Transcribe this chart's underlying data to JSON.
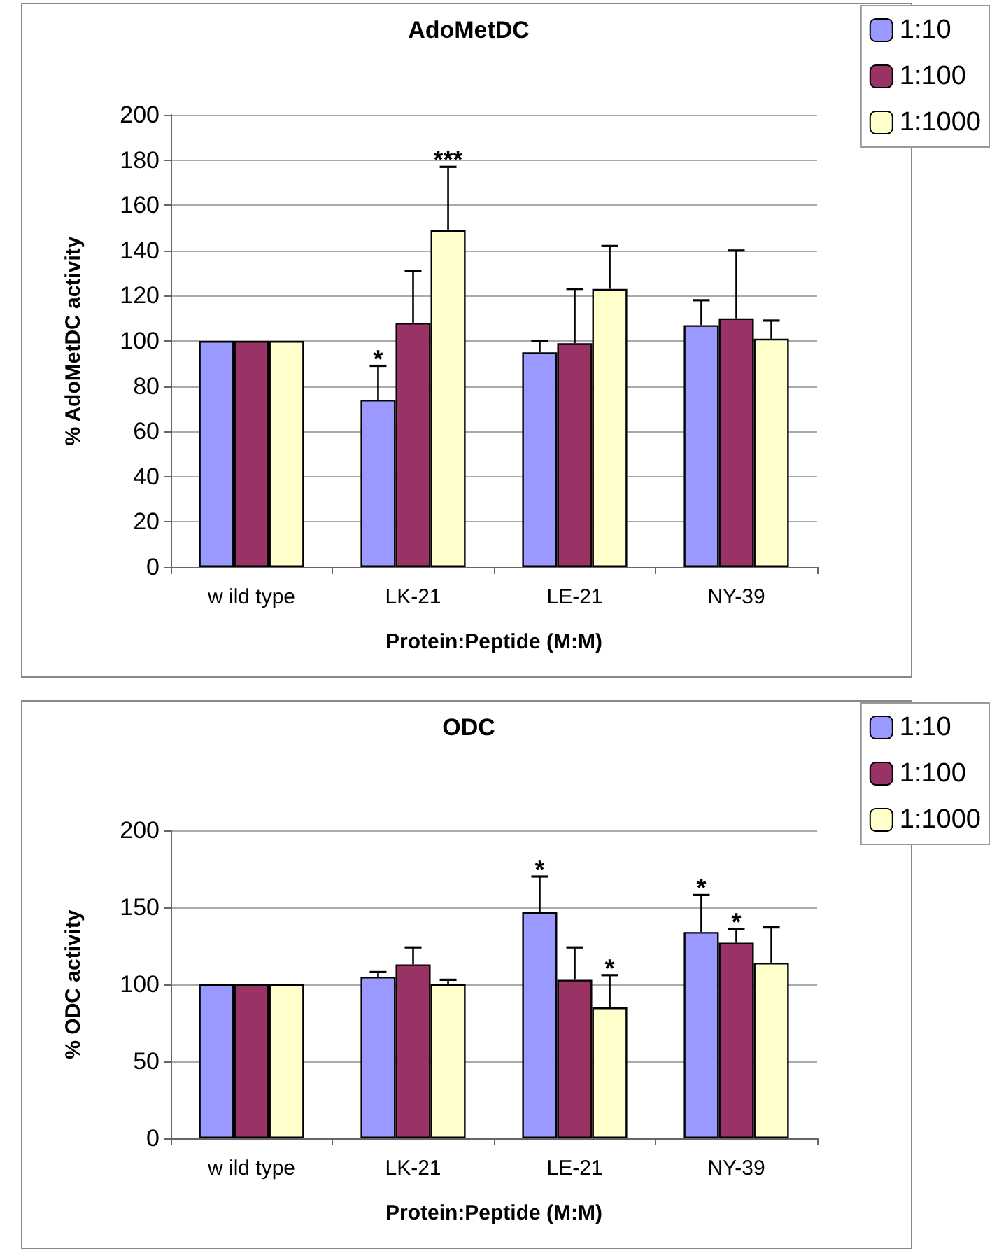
{
  "chart_data": [
    {
      "type": "bar",
      "title": "AdoMetDC",
      "xlabel": "Protein:Peptide (M:M)",
      "ylabel": "% AdoMetDC activity",
      "categories": [
        "w ild type",
        "LK-21",
        "LE-21",
        "NY-39"
      ],
      "series": [
        {
          "name": "1:10",
          "color": "#9999ff",
          "values": [
            100,
            74,
            95,
            107
          ],
          "errors": [
            null,
            [
              74,
              89
            ],
            [
              95,
              100
            ],
            [
              107,
              118
            ]
          ],
          "value_labels": [
            null,
            "*",
            null,
            null
          ]
        },
        {
          "name": "1:100",
          "color": "#993366",
          "values": [
            100,
            108,
            99,
            110
          ],
          "errors": [
            null,
            [
              108,
              131
            ],
            [
              99,
              123
            ],
            [
              110,
              140
            ]
          ]
        },
        {
          "name": "1:1000",
          "color": "#ffffcc",
          "values": [
            100,
            149,
            123,
            101
          ],
          "errors": [
            null,
            [
              149,
              177
            ],
            [
              123,
              142
            ],
            [
              101,
              109
            ]
          ],
          "value_labels": [
            null,
            "***",
            null,
            null
          ]
        }
      ],
      "ylim": [
        0,
        200
      ],
      "yticks": [
        0,
        20,
        40,
        60,
        80,
        100,
        120,
        140,
        160,
        180,
        200
      ],
      "grid": "y",
      "legend": "top right"
    },
    {
      "type": "bar",
      "title": "ODC",
      "xlabel": "Protein:Peptide (M:M)",
      "ylabel": "% ODC activity",
      "categories": [
        "w ild type",
        "LK-21",
        "LE-21",
        "NY-39"
      ],
      "series": [
        {
          "name": "1:10",
          "color": "#9999ff",
          "values": [
            100,
            105,
            147,
            134
          ],
          "errors": [
            null,
            [
              105,
              108
            ],
            [
              147,
              170
            ],
            [
              134,
              158
            ]
          ],
          "value_labels": [
            null,
            null,
            "*",
            "*"
          ]
        },
        {
          "name": "1:100",
          "color": "#993366",
          "values": [
            100,
            113,
            103,
            127
          ],
          "errors": [
            null,
            [
              113,
              124
            ],
            [
              103,
              124
            ],
            [
              127,
              136
            ]
          ],
          "value_labels": [
            null,
            null,
            null,
            "*"
          ]
        },
        {
          "name": "1:1000",
          "color": "#ffffcc",
          "values": [
            100,
            100,
            85,
            114
          ],
          "errors": [
            null,
            [
              100,
              103
            ],
            [
              85,
              106
            ],
            [
              114,
              137
            ]
          ],
          "value_labels": [
            null,
            null,
            "*",
            null
          ]
        }
      ],
      "ylim": [
        0,
        200
      ],
      "yticks": [
        0,
        50,
        100,
        150,
        200
      ],
      "grid": "y",
      "legend": "top right"
    }
  ]
}
